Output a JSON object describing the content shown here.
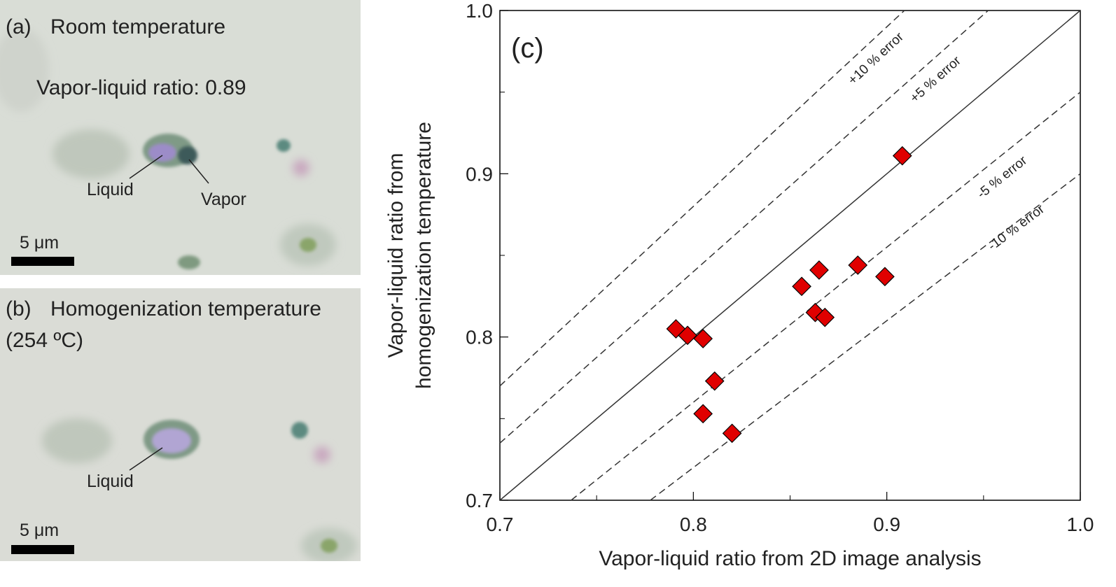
{
  "panels": [
    {
      "label": "(a)",
      "title": "Room temperature",
      "annotation": "Vapor-liquid ratio: 0.89",
      "callouts": [
        "Liquid",
        "Vapor"
      ],
      "scale": "5 μm"
    },
    {
      "label": "(b)",
      "title": "Homogenization temperature",
      "subtitle": "(254 ºC)",
      "callouts": [
        "Liquid"
      ],
      "scale": "5 μm"
    }
  ],
  "chart_data": {
    "type": "scatter",
    "panel_label": "(c)",
    "xlabel": "Vapor-liquid ratio from 2D image analysis",
    "ylabel": [
      "Vapor-liquid ratio from",
      "homogenization temperature"
    ],
    "xlim": [
      0.7,
      1.0
    ],
    "ylim": [
      0.7,
      1.0
    ],
    "xticks": [
      0.7,
      0.8,
      0.9,
      {
        "value": 1,
        "label": "1.0"
      }
    ],
    "yticks": [
      0.7,
      0.8,
      0.9,
      {
        "value": 1,
        "label": "1.0"
      }
    ],
    "xminorticks": [
      0.75,
      0.85,
      0.95
    ],
    "yminorticks": [
      0.75,
      0.85,
      0.95
    ],
    "color": "#e00000",
    "x": [
      0.791,
      0.797,
      0.805,
      0.811,
      0.805,
      0.82,
      0.856,
      0.865,
      0.863,
      0.868,
      0.885,
      0.899,
      0.908
    ],
    "values": [
      0.805,
      0.801,
      0.799,
      0.773,
      0.753,
      0.741,
      0.831,
      0.841,
      0.815,
      0.812,
      0.844,
      0.837,
      0.911
    ],
    "reference_lines": [
      {
        "factor": 1.1,
        "label": "+10 % error",
        "style": "dashed"
      },
      {
        "factor": 1.05,
        "label": "+5 % error",
        "style": "dashed"
      },
      {
        "factor": 1,
        "style": "solid"
      },
      {
        "factor": 0.95,
        "label": "-5 % error",
        "style": "dashed"
      },
      {
        "factor": 0.9,
        "label": "-10 % error",
        "style": "dashed"
      }
    ]
  }
}
